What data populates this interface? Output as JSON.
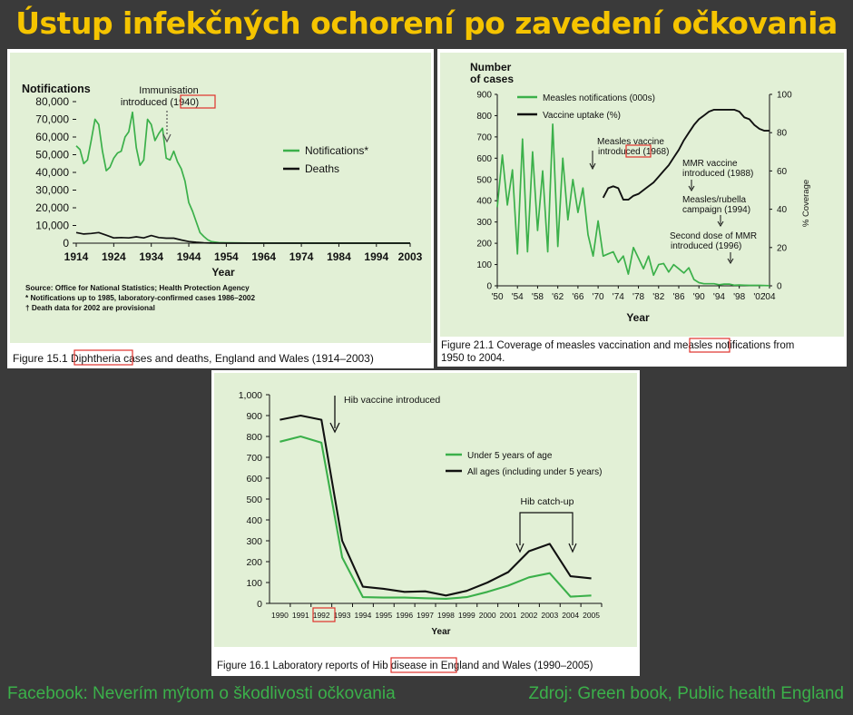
{
  "page_title": "Ústup infekčných ochorení po zavedení očkovania",
  "footer": {
    "left": "Facebook: Neverím mýtom o škodlivosti očkovania",
    "right": "Zdroj: Green book, Public health England"
  },
  "colors": {
    "green": "#3bb04a",
    "black": "#111111",
    "highlight": "#e0312b",
    "title": "#f5c400"
  },
  "chart_data": [
    {
      "type": "line",
      "ylabel": "Notifications",
      "xlabel": "Year",
      "ylim": [
        0,
        80000
      ],
      "xlim": [
        1914,
        2003
      ],
      "yticks": [
        "0",
        "10,000",
        "20,000",
        "30,000",
        "40,000",
        "50,000",
        "60,000",
        "70,000",
        "80,000"
      ],
      "yticks_values": [
        0,
        10000,
        20000,
        30000,
        40000,
        50000,
        60000,
        70000,
        80000
      ],
      "xticks": [
        "1914",
        "1924",
        "1934",
        "1944",
        "1954",
        "1964",
        "1974",
        "1984",
        "1994",
        "2003"
      ],
      "xticks_values": [
        1914,
        1924,
        1934,
        1944,
        1954,
        1964,
        1974,
        1984,
        1994,
        2003
      ],
      "series": [
        {
          "name": "Notifications*",
          "color": "#3bb04a",
          "x": [
            1914,
            1915,
            1916,
            1917,
            1918,
            1919,
            1920,
            1921,
            1922,
            1923,
            1924,
            1925,
            1926,
            1927,
            1928,
            1929,
            1930,
            1931,
            1932,
            1933,
            1934,
            1935,
            1936,
            1937,
            1938,
            1939,
            1940,
            1941,
            1942,
            1943,
            1944,
            1945,
            1946,
            1947,
            1948,
            1949,
            1950,
            1951,
            1952,
            1954,
            1960,
            1970,
            1980,
            1990,
            2003
          ],
          "y": [
            55000,
            53000,
            45000,
            47000,
            58000,
            70000,
            67000,
            52000,
            41000,
            43000,
            48000,
            51000,
            52000,
            60000,
            63000,
            74000,
            54000,
            44000,
            47000,
            70000,
            67000,
            58000,
            62000,
            65000,
            48000,
            47000,
            52000,
            46000,
            42000,
            35000,
            23000,
            18000,
            12000,
            6000,
            3800,
            2000,
            900,
            600,
            300,
            200,
            100,
            50,
            20,
            10,
            5
          ]
        },
        {
          "name": "Deaths",
          "color": "#111111",
          "x": [
            1914,
            1916,
            1918,
            1920,
            1922,
            1924,
            1926,
            1928,
            1930,
            1932,
            1934,
            1936,
            1938,
            1940,
            1942,
            1944,
            1946,
            1948,
            1950,
            1955,
            1970,
            2003
          ],
          "y": [
            6000,
            5200,
            5500,
            6000,
            4500,
            3000,
            3200,
            3000,
            3600,
            3000,
            4300,
            3200,
            2800,
            2800,
            1800,
            900,
            500,
            200,
            60,
            20,
            0,
            0
          ]
        }
      ],
      "annotations": [
        {
          "text": "Immunisation",
          "highlight": ""
        },
        {
          "text": "introduced",
          "highlight": "(1940)"
        }
      ],
      "notes": [
        "Source: Office for National Statistics; Health Protection Agency",
        "* Notifications up to 1985, laboratory-confirmed cases 1986–2002",
        "† Death data for 2002 are provisional"
      ],
      "caption": {
        "prefix": "Figure 15.1",
        "highlight": "Diphtheria",
        "rest": "cases and deaths, England and Wales (1914–2003)"
      },
      "legend": "right"
    },
    {
      "type": "line",
      "ylabel": "Number of cases",
      "ylabel_lines": [
        "Number",
        "of cases"
      ],
      "y2label": "% Coverage",
      "xlabel": "Year",
      "ylim": [
        0,
        900
      ],
      "y2lim": [
        0,
        100
      ],
      "xlim": [
        1950,
        2004
      ],
      "yticks": [
        "0",
        "100",
        "200",
        "300",
        "400",
        "500",
        "600",
        "700",
        "800",
        "900"
      ],
      "y2ticks": [
        "0",
        "20",
        "40",
        "60",
        "80",
        "100"
      ],
      "xticks": [
        "'50",
        "'54",
        "'58",
        "'62",
        "'66",
        "'70",
        "'74",
        "'78",
        "'82",
        "'86",
        "'90",
        "'94",
        "'98",
        "'02",
        "'04"
      ],
      "xticks_values": [
        1950,
        1954,
        1958,
        1962,
        1966,
        1970,
        1974,
        1978,
        1982,
        1986,
        1990,
        1994,
        1998,
        2002,
        2004
      ],
      "series": [
        {
          "name": "Measles notifications (000s)",
          "color": "#3bb04a",
          "axis": "left",
          "x": [
            1950,
            1951,
            1952,
            1953,
            1954,
            1955,
            1956,
            1957,
            1958,
            1959,
            1960,
            1961,
            1962,
            1963,
            1964,
            1965,
            1966,
            1967,
            1968,
            1969,
            1970,
            1971,
            1972,
            1973,
            1974,
            1975,
            1976,
            1977,
            1978,
            1979,
            1980,
            1981,
            1982,
            1983,
            1984,
            1985,
            1986,
            1987,
            1988,
            1989,
            1990,
            1991,
            1992,
            1993,
            1994,
            1995,
            1996,
            1997,
            1998,
            1999,
            2000,
            2002,
            2004
          ],
          "y": [
            370,
            615,
            380,
            545,
            150,
            690,
            160,
            630,
            260,
            540,
            160,
            760,
            185,
            600,
            310,
            500,
            345,
            460,
            240,
            140,
            305,
            140,
            150,
            160,
            110,
            140,
            55,
            180,
            130,
            80,
            140,
            50,
            100,
            105,
            65,
            100,
            80,
            60,
            85,
            30,
            15,
            10,
            10,
            10,
            5,
            8,
            8,
            3,
            4,
            3,
            2,
            2,
            1
          ]
        },
        {
          "name": "Vaccine uptake (%)",
          "color": "#111111",
          "axis": "right",
          "x": [
            1971,
            1972,
            1973,
            1974,
            1975,
            1976,
            1977,
            1978,
            1979,
            1980,
            1981,
            1982,
            1983,
            1984,
            1985,
            1986,
            1987,
            1988,
            1989,
            1990,
            1991,
            1992,
            1993,
            1994,
            1995,
            1996,
            1997,
            1998,
            1999,
            2000,
            2001,
            2002,
            2003,
            2004
          ],
          "y": [
            46,
            51,
            52,
            51,
            45,
            45,
            47,
            48,
            50,
            52,
            54,
            57,
            60,
            63,
            67,
            71,
            76,
            80,
            84,
            87,
            89,
            91,
            92,
            92,
            92,
            92,
            92,
            91,
            88,
            87,
            84,
            82,
            81,
            81
          ]
        }
      ],
      "annotations": [
        {
          "text": "Measles vaccine",
          "highlight": ""
        },
        {
          "text": "introduced",
          "highlight": "1968"
        },
        {
          "text": "MMR vaccine"
        },
        {
          "text": "introduced (1988)"
        },
        {
          "text": "Measles/rubella"
        },
        {
          "text": "campaign (1994)"
        },
        {
          "text": "Second dose of MMR"
        },
        {
          "text": "introduced (1996)"
        }
      ],
      "caption": {
        "prefix": "Figure 21.1  Coverage of measles vaccination and",
        "highlight": "measles",
        "rest": "notifications from",
        "line2": "1950 to 2004."
      },
      "legend": "top-left"
    },
    {
      "type": "line",
      "xlabel": "Year",
      "ylim": [
        0,
        1000
      ],
      "yticks": [
        "0",
        "100",
        "200",
        "300",
        "400",
        "500",
        "600",
        "700",
        "800",
        "900",
        "1,000"
      ],
      "categories": [
        "1990",
        "1991",
        "1992",
        "1993",
        "1994",
        "1995",
        "1996",
        "1997",
        "1998",
        "1999",
        "2000",
        "2001",
        "2002",
        "2003",
        "2004",
        "2005"
      ],
      "highlight_category": "1992",
      "series": [
        {
          "name": "Under 5 years of age",
          "color": "#3bb04a",
          "values": [
            775,
            800,
            770,
            220,
            30,
            28,
            28,
            25,
            22,
            30,
            55,
            85,
            125,
            145,
            32,
            38
          ]
        },
        {
          "name": "All ages (including under 5 years)",
          "color": "#111111",
          "values": [
            880,
            900,
            880,
            300,
            80,
            70,
            55,
            58,
            38,
            60,
            100,
            150,
            250,
            285,
            130,
            120
          ]
        }
      ],
      "annotations": [
        {
          "text": "Hib vaccine introduced"
        },
        {
          "text": "Hib catch-up"
        }
      ],
      "caption": {
        "prefix": "Figure 16.1  Laboratory reports of",
        "highlight": "Hib disease",
        "rest": "in England and Wales (1990–2005)"
      },
      "legend": "right"
    }
  ]
}
